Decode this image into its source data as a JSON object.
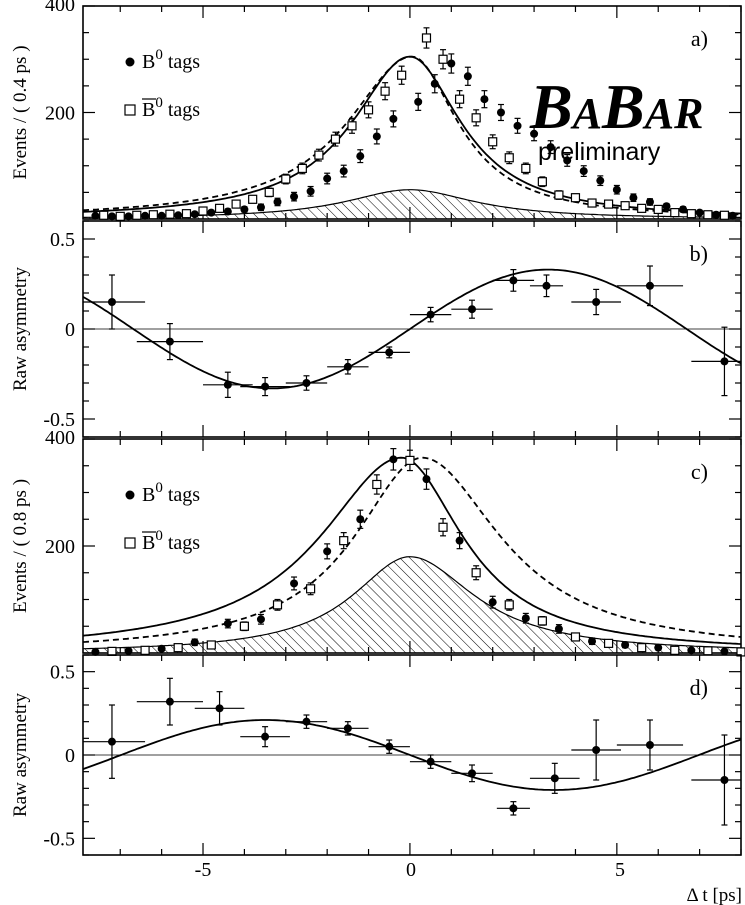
{
  "logo": {
    "part1": "B",
    "part2": "A",
    "part3": "B",
    "part4": "AR",
    "subtitle": "preliminary"
  },
  "x_axis": {
    "label": "Δ t [ps]",
    "ticks": [
      "-5",
      "0",
      "5"
    ]
  },
  "chart_data": [
    {
      "panel": "a)",
      "type": "scatter",
      "ylabel": "Events / ( 0.4 ps )",
      "xlim": [
        -7.9,
        8.0
      ],
      "ylim": [
        0,
        400
      ],
      "yticks": [
        "200",
        "400"
      ],
      "legend": [
        {
          "marker": "filled-circle",
          "label": "B",
          "sup": "0",
          "suffix": " tags"
        },
        {
          "marker": "open-square",
          "label": "B",
          "sup": "0",
          "suffix": " tags",
          "overline": true
        }
      ],
      "series": [
        {
          "name": "B0 tags",
          "marker": "filled-circle",
          "x": [
            -7.6,
            -7.2,
            -6.8,
            -6.4,
            -6.0,
            -5.6,
            -5.2,
            -4.8,
            -4.4,
            -4.0,
            -3.6,
            -3.2,
            -2.8,
            -2.4,
            -2.0,
            -1.6,
            -1.2,
            -0.8,
            -0.4,
            0.2,
            0.6,
            1.0,
            1.4,
            1.8,
            2.2,
            2.6,
            3.0,
            3.4,
            3.8,
            4.2,
            4.6,
            5.0,
            5.4,
            5.8,
            6.2,
            6.6,
            7.0,
            7.4,
            7.8
          ],
          "y": [
            6,
            5,
            5,
            6,
            6,
            7,
            9,
            12,
            14,
            18,
            22,
            32,
            42,
            52,
            76,
            90,
            118,
            155,
            188,
            220,
            254,
            292,
            268,
            225,
            200,
            175,
            160,
            135,
            110,
            90,
            72,
            55,
            40,
            32,
            24,
            18,
            12,
            8,
            6
          ],
          "err": [
            3,
            3,
            3,
            3,
            3,
            3,
            4,
            4,
            5,
            5,
            6,
            7,
            8,
            9,
            10,
            11,
            12,
            14,
            15,
            16,
            17,
            18,
            17,
            16,
            15,
            14,
            13,
            12,
            11,
            10,
            9,
            8,
            7,
            6,
            5,
            5,
            4,
            3,
            3
          ]
        },
        {
          "name": "anti-B0 tags",
          "marker": "open-square",
          "x": [
            -7.4,
            -7.0,
            -6.6,
            -6.2,
            -5.8,
            -5.4,
            -5.0,
            -4.6,
            -4.2,
            -3.8,
            -3.4,
            -3.0,
            -2.6,
            -2.2,
            -1.8,
            -1.4,
            -1.0,
            -0.6,
            -0.2,
            0.4,
            0.8,
            1.2,
            1.6,
            2.0,
            2.4,
            2.8,
            3.2,
            3.6,
            4.0,
            4.4,
            4.8,
            5.2,
            5.6,
            6.0,
            6.4,
            6.8,
            7.2,
            7.6
          ],
          "y": [
            7,
            5,
            7,
            8,
            9,
            10,
            15,
            20,
            28,
            37,
            50,
            75,
            95,
            120,
            150,
            175,
            205,
            240,
            270,
            340,
            300,
            225,
            190,
            145,
            115,
            95,
            70,
            45,
            40,
            30,
            28,
            25,
            20,
            18,
            12,
            10,
            8,
            7
          ],
          "err": [
            3,
            3,
            3,
            3,
            4,
            4,
            4,
            5,
            6,
            7,
            8,
            9,
            10,
            11,
            13,
            14,
            15,
            16,
            17,
            19,
            18,
            16,
            15,
            13,
            11,
            10,
            9,
            8,
            7,
            6,
            6,
            6,
            5,
            5,
            4,
            4,
            3,
            3
          ]
        }
      ],
      "curves": [
        {
          "name": "fit-B0",
          "style": "solid",
          "peak": 305,
          "center": 0.0,
          "left_scale": 1.7,
          "right_scale": 1.5
        },
        {
          "name": "fit-anti-B0",
          "style": "dashed",
          "peak": 305,
          "center": 0.05,
          "left_scale": 1.9,
          "right_scale": 1.35
        },
        {
          "name": "background",
          "style": "hatched",
          "peak": 55,
          "center": 0.0,
          "left_scale": 1.9,
          "right_scale": 1.9
        }
      ]
    },
    {
      "panel": "b)",
      "type": "scatter",
      "ylabel": "Raw asymmetry",
      "xlim": [
        -7.9,
        8.0
      ],
      "ylim": [
        -0.6,
        0.6
      ],
      "yticks": [
        "0.5",
        "0",
        "-0.5"
      ],
      "points": {
        "x": [
          -7.2,
          -5.8,
          -4.4,
          -3.5,
          -2.5,
          -1.5,
          -0.5,
          0.5,
          1.5,
          2.5,
          3.3,
          4.5,
          5.8,
          7.6
        ],
        "y": [
          0.15,
          -0.07,
          -0.31,
          -0.32,
          -0.3,
          -0.21,
          -0.13,
          0.08,
          0.11,
          0.27,
          0.24,
          0.15,
          0.24,
          -0.18
        ],
        "yerr": [
          0.15,
          0.1,
          0.07,
          0.05,
          0.04,
          0.04,
          0.03,
          0.04,
          0.05,
          0.06,
          0.06,
          0.07,
          0.11,
          0.19
        ],
        "xerr": [
          0.8,
          0.8,
          0.6,
          0.6,
          0.5,
          0.5,
          0.5,
          0.5,
          0.5,
          0.5,
          0.4,
          0.6,
          0.8,
          0.8
        ]
      },
      "fit": {
        "amplitude": 0.33,
        "omega": 0.47,
        "phase": 0.0
      }
    },
    {
      "panel": "c)",
      "type": "scatter",
      "ylabel": "Events / ( 0.8 ps )",
      "xlim": [
        -7.9,
        8.0
      ],
      "ylim": [
        0,
        400
      ],
      "yticks": [
        "200",
        "400"
      ],
      "legend": [
        {
          "marker": "filled-circle",
          "label": "B",
          "sup": "0",
          "suffix": " tags"
        },
        {
          "marker": "open-square",
          "label": "B",
          "sup": "0",
          "suffix": " tags",
          "overline": true
        }
      ],
      "series": [
        {
          "name": "B0 tags",
          "marker": "filled-circle",
          "x": [
            -7.6,
            -6.8,
            -6.0,
            -5.2,
            -4.4,
            -3.6,
            -2.8,
            -2.0,
            -1.2,
            -0.4,
            0.4,
            1.2,
            2.0,
            2.8,
            3.6,
            4.4,
            5.2,
            6.0,
            6.8,
            7.6
          ],
          "y": [
            2,
            4,
            8,
            20,
            55,
            63,
            130,
            190,
            250,
            362,
            325,
            210,
            95,
            65,
            45,
            22,
            15,
            10,
            5,
            3
          ],
          "err": [
            2,
            3,
            4,
            6,
            8,
            9,
            12,
            14,
            17,
            20,
            19,
            15,
            11,
            9,
            8,
            6,
            5,
            4,
            3,
            2
          ]
        },
        {
          "name": "anti-B0 tags",
          "marker": "open-square",
          "x": [
            -7.2,
            -6.4,
            -5.6,
            -4.8,
            -4.0,
            -3.2,
            -2.4,
            -1.6,
            -0.8,
            0.0,
            0.8,
            1.6,
            2.4,
            3.2,
            4.0,
            4.8,
            5.6,
            6.4,
            7.2,
            8.0
          ],
          "y": [
            3,
            5,
            10,
            15,
            50,
            90,
            120,
            210,
            315,
            360,
            235,
            150,
            90,
            60,
            30,
            18,
            10,
            5,
            4,
            2
          ],
          "err": [
            2,
            3,
            4,
            5,
            8,
            10,
            11,
            15,
            18,
            19,
            16,
            13,
            10,
            8,
            6,
            5,
            4,
            3,
            2,
            2
          ]
        }
      ],
      "curves": [
        {
          "name": "fit-B0",
          "style": "solid",
          "peak": 365,
          "center": -0.2,
          "left_scale": 2.4,
          "right_scale": 1.8
        },
        {
          "name": "fit-anti-B0",
          "style": "dashed",
          "peak": 365,
          "center": 0.3,
          "left_scale": 2.0,
          "right_scale": 2.3
        },
        {
          "name": "background",
          "style": "hatched",
          "peak": 180,
          "center": 0.0,
          "left_scale": 1.7,
          "right_scale": 1.9
        }
      ]
    },
    {
      "panel": "d)",
      "type": "scatter",
      "ylabel": "Raw asymmetry",
      "xlim": [
        -7.9,
        8.0
      ],
      "ylim": [
        -0.6,
        0.6
      ],
      "yticks": [
        "0.5",
        "0",
        "-0.5"
      ],
      "points": {
        "x": [
          -7.2,
          -5.8,
          -4.6,
          -3.5,
          -2.5,
          -1.5,
          -0.5,
          0.5,
          1.5,
          2.5,
          3.5,
          4.5,
          5.8,
          7.6
        ],
        "y": [
          0.08,
          0.32,
          0.28,
          0.11,
          0.2,
          0.16,
          0.05,
          -0.04,
          -0.11,
          -0.32,
          -0.14,
          0.03,
          0.06,
          -0.15
        ],
        "yerr": [
          0.22,
          0.14,
          0.1,
          0.06,
          0.04,
          0.04,
          0.04,
          0.04,
          0.05,
          0.04,
          0.09,
          0.18,
          0.15,
          0.27
        ],
        "xerr": [
          0.8,
          0.8,
          0.6,
          0.6,
          0.5,
          0.5,
          0.5,
          0.5,
          0.5,
          0.4,
          0.6,
          0.6,
          0.8,
          0.8
        ]
      },
      "fit": {
        "amplitude": -0.21,
        "omega": 0.45,
        "phase": 0.0
      }
    }
  ]
}
